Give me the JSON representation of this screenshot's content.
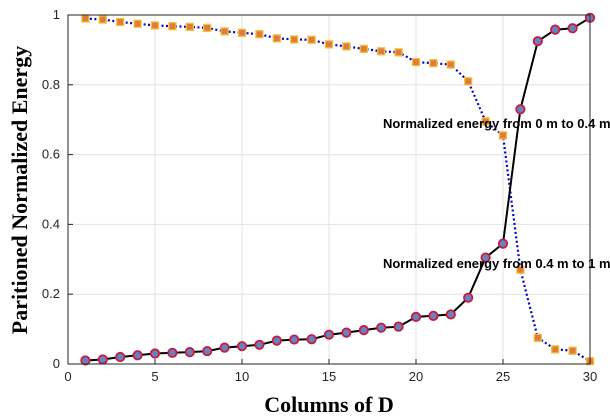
{
  "chart_data": {
    "type": "line",
    "xlabel": "Columns of D",
    "ylabel": "Paritioned Normalized Energy",
    "xlim": [
      0,
      30
    ],
    "ylim": [
      0,
      1
    ],
    "xticks": [
      0,
      5,
      10,
      15,
      20,
      25,
      30
    ],
    "yticks": [
      0,
      0.2,
      0.4,
      0.6,
      0.8,
      1
    ],
    "grid": true,
    "x": [
      1,
      2,
      3,
      4,
      5,
      6,
      7,
      8,
      9,
      10,
      11,
      12,
      13,
      14,
      15,
      16,
      17,
      18,
      19,
      20,
      21,
      22,
      23,
      24,
      25,
      26,
      27,
      28,
      29,
      30
    ],
    "series": [
      {
        "style": "dotted",
        "color": "#0000cc",
        "marker": "square",
        "marker_fill": "#e07b39",
        "marker_edge": "#f0c040",
        "values": [
          0.99,
          0.987,
          0.98,
          0.975,
          0.97,
          0.968,
          0.966,
          0.963,
          0.953,
          0.949,
          0.945,
          0.933,
          0.93,
          0.929,
          0.916,
          0.91,
          0.903,
          0.896,
          0.893,
          0.865,
          0.862,
          0.858,
          0.81,
          0.695,
          0.655,
          0.27,
          0.075,
          0.042,
          0.038,
          0.008
        ]
      },
      {
        "style": "solid",
        "color": "#000000",
        "marker": "circle",
        "marker_fill": "#6a7fc4",
        "marker_edge": "#c41e3a",
        "values": [
          0.01,
          0.013,
          0.02,
          0.025,
          0.03,
          0.032,
          0.034,
          0.037,
          0.047,
          0.051,
          0.055,
          0.067,
          0.07,
          0.071,
          0.084,
          0.09,
          0.097,
          0.104,
          0.107,
          0.135,
          0.138,
          0.142,
          0.19,
          0.305,
          0.345,
          0.73,
          0.925,
          0.958,
          0.962,
          0.992
        ]
      }
    ],
    "annotations": [
      {
        "text": "Normalized energy from 0 m to 0.4 m",
        "x": 18.1,
        "y": 0.69
      },
      {
        "text": "Normalized energy from 0.4 m to 1 m",
        "x": 18.1,
        "y": 0.29
      }
    ]
  }
}
